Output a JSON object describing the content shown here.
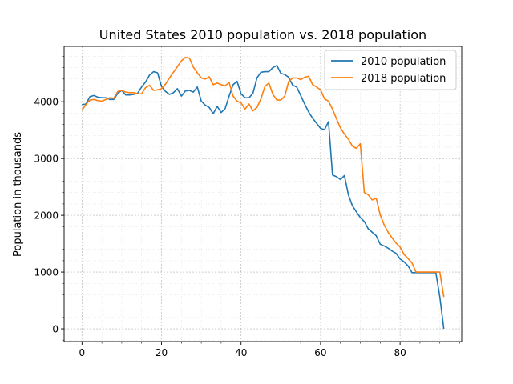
{
  "chart_data": {
    "type": "line",
    "title": "United States 2010 population vs. 2018 population",
    "xlabel": "",
    "ylabel": "Population in thousands",
    "xlim": [
      -4.5,
      95.5
    ],
    "ylim": [
      -225,
      4975
    ],
    "x_ticks": [
      0,
      20,
      40,
      60,
      80
    ],
    "y_ticks": [
      0,
      1000,
      2000,
      3000,
      4000
    ],
    "grid": true,
    "legend_position": "top-right",
    "series": [
      {
        "name": "2010 population",
        "color": "#1f77b4",
        "x": [
          0,
          1,
          2,
          3,
          4,
          5,
          6,
          7,
          8,
          9,
          10,
          11,
          12,
          13,
          14,
          15,
          16,
          17,
          18,
          19,
          20,
          21,
          22,
          23,
          24,
          25,
          26,
          27,
          28,
          29,
          30,
          31,
          32,
          33,
          34,
          35,
          36,
          37,
          38,
          39,
          40,
          41,
          42,
          43,
          44,
          45,
          46,
          47,
          48,
          49,
          50,
          51,
          52,
          53,
          54,
          55,
          56,
          57,
          58,
          59,
          60,
          61,
          62,
          63,
          64,
          65,
          66,
          67,
          68,
          69,
          70,
          71,
          72,
          73,
          74,
          75,
          76,
          77,
          78,
          79,
          80,
          81,
          82,
          83,
          84,
          85,
          86,
          87,
          88,
          89,
          90,
          91
        ],
        "values": [
          3950,
          3960,
          4090,
          4110,
          4080,
          4070,
          4070,
          4040,
          4040,
          4150,
          4200,
          4120,
          4120,
          4130,
          4150,
          4260,
          4350,
          4470,
          4530,
          4510,
          4270,
          4180,
          4130,
          4160,
          4230,
          4100,
          4190,
          4200,
          4170,
          4260,
          4010,
          3940,
          3900,
          3790,
          3920,
          3810,
          3880,
          4100,
          4300,
          4360,
          4140,
          4070,
          4070,
          4150,
          4420,
          4520,
          4530,
          4530,
          4600,
          4640,
          4500,
          4480,
          4430,
          4290,
          4260,
          4110,
          3960,
          3820,
          3710,
          3620,
          3530,
          3510,
          3650,
          2710,
          2680,
          2630,
          2700,
          2360,
          2170,
          2060,
          1960,
          1890,
          1760,
          1700,
          1640,
          1490,
          1460,
          1420,
          1370,
          1330,
          1230,
          1180,
          1110,
          990,
          990,
          990,
          990,
          990,
          990,
          990,
          560,
          0
        ]
      },
      {
        "name": "2018 population",
        "color": "#ff7f0e",
        "x": [
          0,
          1,
          2,
          3,
          4,
          5,
          6,
          7,
          8,
          9,
          10,
          11,
          12,
          13,
          14,
          15,
          16,
          17,
          18,
          19,
          20,
          21,
          22,
          23,
          24,
          25,
          26,
          27,
          28,
          29,
          30,
          31,
          32,
          33,
          34,
          35,
          36,
          37,
          38,
          39,
          40,
          41,
          42,
          43,
          44,
          45,
          46,
          47,
          48,
          49,
          50,
          51,
          52,
          53,
          54,
          55,
          56,
          57,
          58,
          59,
          60,
          61,
          62,
          63,
          64,
          65,
          66,
          67,
          68,
          69,
          70,
          71,
          72,
          73,
          74,
          75,
          76,
          77,
          78,
          79,
          80,
          81,
          82,
          83,
          84,
          85,
          86,
          87,
          88,
          89,
          90,
          91
        ],
        "values": [
          3850,
          3950,
          4030,
          4040,
          4020,
          4010,
          4040,
          4070,
          4060,
          4180,
          4200,
          4170,
          4160,
          4160,
          4140,
          4140,
          4250,
          4290,
          4200,
          4210,
          4230,
          4310,
          4420,
          4520,
          4620,
          4720,
          4780,
          4770,
          4610,
          4510,
          4420,
          4400,
          4440,
          4300,
          4330,
          4300,
          4280,
          4340,
          4100,
          4010,
          3980,
          3870,
          3960,
          3840,
          3900,
          4050,
          4270,
          4330,
          4130,
          4030,
          4030,
          4100,
          4360,
          4420,
          4420,
          4390,
          4430,
          4450,
          4300,
          4260,
          4210,
          4050,
          4010,
          3870,
          3700,
          3540,
          3430,
          3340,
          3220,
          3180,
          3260,
          2400,
          2360,
          2270,
          2300,
          2010,
          1830,
          1700,
          1600,
          1510,
          1440,
          1310,
          1240,
          1160,
          1000,
          1000,
          1000,
          1000,
          1000,
          1000,
          1000,
          560
        ]
      }
    ]
  }
}
